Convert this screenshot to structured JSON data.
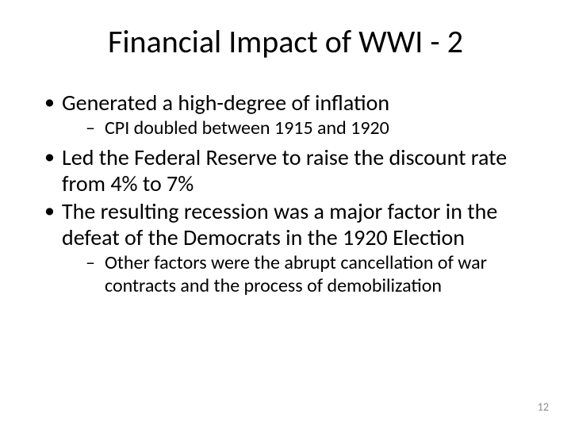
{
  "slide": {
    "title": "Financial Impact of WWI - 2",
    "bullets": [
      {
        "text": "Generated a high-degree of inflation",
        "sub": [
          {
            "text": "CPI doubled between 1915 and 1920"
          }
        ]
      },
      {
        "text": "Led the Federal Reserve to raise the discount rate from 4% to 7%",
        "sub": []
      },
      {
        "text": "The resulting recession was a major factor in the defeat of the Democrats in the 1920 Election",
        "sub": [
          {
            "text": "Other factors were the abrupt cancellation of war contracts and the process of demobilization"
          }
        ]
      }
    ],
    "page_number": "12"
  },
  "style": {
    "background_color": "#ffffff",
    "text_color": "#000000",
    "page_number_color": "#8b8b8b",
    "title_fontsize": 40,
    "level1_fontsize": 28,
    "level2_fontsize": 24,
    "font_family": "Calibri"
  }
}
